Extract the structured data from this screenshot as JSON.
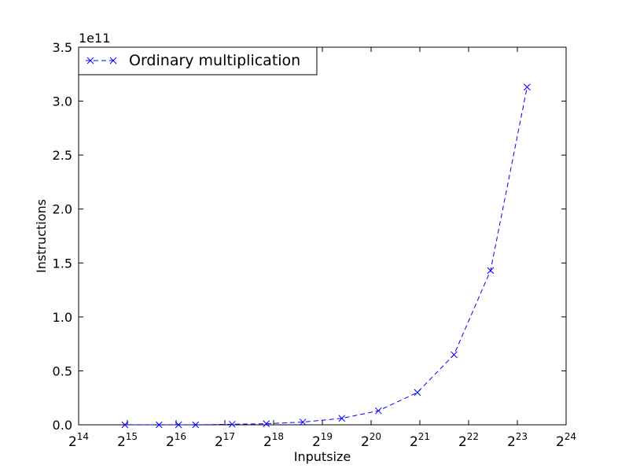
{
  "chart_data": {
    "type": "line",
    "title": "",
    "xlabel": "Inputsize",
    "ylabel": "Instructions",
    "x_scale": "log2",
    "xlim_exponent": [
      14,
      24
    ],
    "ylim": [
      0,
      3.5
    ],
    "y_offset_label": "1e11",
    "x_ticks": [
      {
        "base": "2",
        "exp": "14"
      },
      {
        "base": "2",
        "exp": "15"
      },
      {
        "base": "2",
        "exp": "16"
      },
      {
        "base": "2",
        "exp": "17"
      },
      {
        "base": "2",
        "exp": "18"
      },
      {
        "base": "2",
        "exp": "19"
      },
      {
        "base": "2",
        "exp": "20"
      },
      {
        "base": "2",
        "exp": "21"
      },
      {
        "base": "2",
        "exp": "22"
      },
      {
        "base": "2",
        "exp": "23"
      },
      {
        "base": "2",
        "exp": "24"
      }
    ],
    "y_ticks": [
      "0.0",
      "0.5",
      "1.0",
      "1.5",
      "2.0",
      "2.5",
      "3.0",
      "3.5"
    ],
    "grid": false,
    "legend_position": "top-left",
    "series": [
      {
        "name": "Ordinary multiplication",
        "color": "#0000ff",
        "line_style": "dashed",
        "marker": "x",
        "x_exponent": [
          14.95,
          15.65,
          16.05,
          16.4,
          17.15,
          17.85,
          18.6,
          19.4,
          20.15,
          20.95,
          21.7,
          22.45,
          23.2
        ],
        "y": [
          0.0,
          0.0,
          0.0,
          0.0,
          0.005,
          0.01,
          0.025,
          0.06,
          0.13,
          0.3,
          0.65,
          1.43,
          3.13
        ]
      }
    ]
  }
}
